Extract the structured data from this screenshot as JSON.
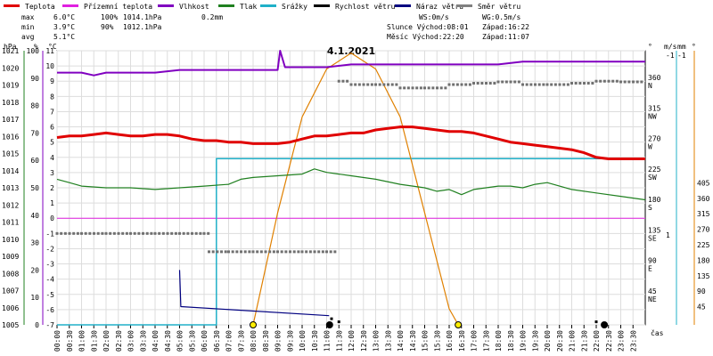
{
  "chart_data": {
    "type": "line",
    "title": "4.1.2021",
    "legend": {
      "placement": "top",
      "items": [
        {
          "label": "Teplota",
          "color": "#e00000"
        },
        {
          "label": "Přízemní teplota",
          "color": "#e020e0"
        },
        {
          "label": "Vlhkost",
          "color": "#8000c0"
        },
        {
          "label": "Tlak",
          "color": "#208020"
        },
        {
          "label": "Srážky",
          "color": "#20b0c8"
        },
        {
          "label": "Rychlost větru",
          "color": "#000000"
        },
        {
          "label": "Náraz větru",
          "color": "#000080"
        },
        {
          "label": "Směr větru",
          "color": "#808080"
        }
      ]
    },
    "stats": {
      "max": {
        "label": "max",
        "temp": "6.0°C",
        "humidity": "100%",
        "pressure": "1014.1hPa",
        "rain": "0.2mm"
      },
      "min": {
        "label": "min",
        "temp": "3.9°C",
        "humidity": "90%",
        "pressure": "1012.1hPa"
      },
      "avg": {
        "label": "avg",
        "temp": "5.1°C"
      }
    },
    "info": {
      "ws": "WS:0m/s",
      "wg": "WG:0.5m/s",
      "sun": "Slunce Východ:08:01",
      "sun_set": "Západ:16:22",
      "moon": "Měsíc Východ:22:20",
      "moon_set": "Západ:11:07"
    },
    "axes": {
      "pressure": {
        "unit": "hPa",
        "color": "#208020",
        "range": [
          1005,
          1021
        ],
        "ticks": [
          "1005",
          "1006",
          "1007",
          "1008",
          "1009",
          "1010",
          "1011",
          "1012",
          "1013",
          "1014",
          "1015",
          "1016",
          "1017",
          "1018",
          "1019",
          "1020",
          "1021"
        ]
      },
      "humidity": {
        "unit": "%",
        "color": "#8000c0",
        "range": [
          0,
          100
        ],
        "ticks": [
          "0",
          "10",
          "20",
          "30",
          "40",
          "50",
          "60",
          "70",
          "80",
          "90",
          "100"
        ]
      },
      "temperature": {
        "unit": "°C",
        "color": "#e00000",
        "range": [
          -7,
          11
        ],
        "ticks": [
          "-7",
          "-6",
          "-5",
          "-4",
          "-3",
          "-2",
          "-1",
          "0",
          "1",
          "2",
          "3",
          "4",
          "5",
          "6",
          "7",
          "8",
          "9",
          "10",
          "11"
        ]
      },
      "direction": {
        "unit": "°",
        "ticks": [
          {
            "deg": "45",
            "dir": "NE"
          },
          {
            "deg": "90",
            "dir": "E"
          },
          {
            "deg": "135",
            "dir": "SE"
          },
          {
            "deg": "180",
            "dir": "S"
          },
          {
            "deg": "225",
            "dir": "SW"
          },
          {
            "deg": "270",
            "dir": "W"
          },
          {
            "deg": "315",
            "dir": "NW"
          },
          {
            "deg": "360",
            "dir": "N"
          }
        ]
      },
      "wind": {
        "unit": "m/s",
        "ticks": [
          "1",
          "-1"
        ]
      },
      "rain": {
        "unit": "mm",
        "color": "#20b0c8",
        "ticks": [
          "-1"
        ]
      },
      "sun": {
        "color": "#e08000",
        "ticks": [
          "45",
          "90",
          "135",
          "180",
          "225",
          "270",
          "315",
          "360",
          "405"
        ]
      },
      "x": {
        "label": "čas",
        "ticks": [
          "00:00",
          "00:30",
          "01:00",
          "01:30",
          "02:00",
          "02:30",
          "03:00",
          "03:30",
          "04:00",
          "04:30",
          "05:00",
          "05:30",
          "06:00",
          "06:30",
          "07:00",
          "07:30",
          "08:00",
          "08:30",
          "09:00",
          "09:30",
          "10:00",
          "10:30",
          "11:00",
          "11:30",
          "12:00",
          "12:30",
          "13:00",
          "13:30",
          "14:00",
          "14:30",
          "15:00",
          "15:30",
          "16:00",
          "16:30",
          "17:00",
          "17:30",
          "18:00",
          "18:30",
          "19:00",
          "19:30",
          "20:00",
          "20:30",
          "21:00",
          "21:30",
          "22:00",
          "22:30",
          "23:00",
          "23:30"
        ]
      }
    },
    "series": {
      "temperature_x": [
        0,
        0.5,
        1,
        1.5,
        2,
        2.5,
        3,
        3.5,
        4,
        4.5,
        5,
        5.5,
        6,
        6.5,
        7,
        7.5,
        8,
        8.5,
        9,
        9.5,
        10,
        10.5,
        11,
        11.5,
        12,
        12.5,
        13,
        13.5,
        14,
        14.5,
        15,
        15.5,
        16,
        16.5,
        17,
        17.5,
        18,
        18.5,
        19,
        19.5,
        20,
        20.5,
        21,
        21.5,
        22,
        22.5,
        23,
        23.5,
        24
      ],
      "temperature": [
        5.3,
        5.4,
        5.4,
        5.5,
        5.6,
        5.5,
        5.4,
        5.4,
        5.5,
        5.5,
        5.4,
        5.2,
        5.1,
        5.1,
        5.0,
        5.0,
        4.9,
        4.9,
        4.9,
        5.0,
        5.2,
        5.4,
        5.4,
        5.5,
        5.6,
        5.6,
        5.8,
        5.9,
        6.0,
        6.0,
        5.9,
        5.8,
        5.7,
        5.7,
        5.6,
        5.4,
        5.2,
        5.0,
        4.9,
        4.8,
        4.7,
        4.6,
        4.5,
        4.3,
        4.0,
        3.9,
        3.9,
        3.9,
        3.9
      ],
      "humidity_x": [
        0,
        1,
        1.5,
        2,
        3,
        4,
        5,
        5,
        6,
        7,
        8,
        9,
        9.1,
        9.3,
        9.5,
        10,
        11,
        12,
        13,
        14,
        15,
        16,
        17,
        18,
        19,
        20,
        21,
        22,
        23,
        24
      ],
      "humidity": [
        92,
        92,
        91,
        92,
        92,
        92,
        93,
        93,
        93,
        93,
        93,
        93,
        100,
        94,
        94,
        94,
        94,
        95,
        95,
        95,
        95,
        95,
        95,
        95,
        96,
        96,
        96,
        96,
        96,
        96
      ],
      "pressure_x": [
        0,
        0.5,
        1,
        2,
        3,
        4,
        5,
        6,
        7,
        7.5,
        8,
        9,
        10,
        10.5,
        11,
        11.5,
        12,
        13,
        14,
        15,
        15.5,
        16,
        16.5,
        17,
        17.5,
        18,
        18.5,
        19,
        19.5,
        20,
        21,
        22,
        23,
        24
      ],
      "pressure": [
        1013.5,
        1013.3,
        1013.1,
        1013.0,
        1013.0,
        1012.9,
        1013.0,
        1013.1,
        1013.2,
        1013.5,
        1013.6,
        1013.7,
        1013.8,
        1014.1,
        1013.9,
        1013.8,
        1013.7,
        1013.5,
        1013.2,
        1013.0,
        1012.8,
        1012.9,
        1012.6,
        1012.9,
        1013.0,
        1013.1,
        1013.1,
        1013.0,
        1013.2,
        1013.3,
        1012.9,
        1012.7,
        1012.5,
        1012.3
      ],
      "ground_temp_x": [
        0,
        24
      ],
      "ground_temp": [
        0,
        0
      ],
      "rain_x": [
        0,
        6.2,
        6.2,
        6.5,
        24
      ],
      "rain": [
        0,
        0,
        0,
        0.2,
        0.2
      ],
      "sun_elev_x": [
        8.0,
        9,
        10,
        11,
        12,
        13,
        14,
        15,
        16,
        16.37
      ],
      "sun_elev": [
        0,
        7,
        13,
        16,
        17,
        16,
        13,
        7,
        1,
        0
      ],
      "wind_speed_x": [
        11.2,
        11.5,
        22.0
      ],
      "wind_speed": [
        0.2,
        0.1,
        0.1
      ],
      "gust_x": [
        5.0,
        5.05,
        11.1
      ],
      "gust": [
        1.8,
        0.6,
        0.3
      ],
      "direction_x": [
        0,
        1,
        2,
        3,
        4,
        5,
        6,
        6.2,
        7,
        8,
        9,
        10,
        11,
        11.5,
        12,
        13,
        14,
        15,
        16,
        17,
        18,
        19,
        20,
        21,
        22,
        23,
        24
      ],
      "direction": [
        135,
        135,
        135,
        135,
        135,
        135,
        135,
        108,
        108,
        108,
        108,
        108,
        108,
        360,
        355,
        355,
        350,
        350,
        355,
        357,
        359,
        355,
        355,
        357,
        360,
        359,
        358
      ]
    }
  }
}
